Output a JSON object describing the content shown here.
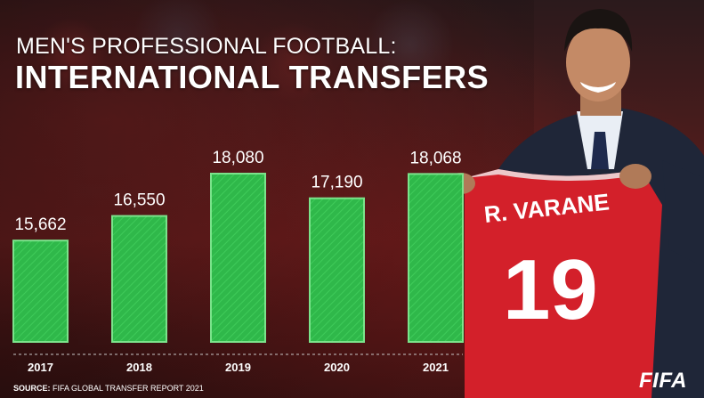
{
  "header": {
    "subtitle": "MEN'S PROFESSIONAL FOOTBALL:",
    "title": "INTERNATIONAL TRANSFERS"
  },
  "chart_data": {
    "type": "bar",
    "categories": [
      "2017",
      "2018",
      "2019",
      "2020",
      "2021"
    ],
    "values": [
      15662,
      16550,
      18080,
      17190,
      18068
    ],
    "value_labels": [
      "15,662",
      "16,550",
      "18,080",
      "17,190",
      "18,068"
    ],
    "title": "INTERNATIONAL TRANSFERS",
    "subtitle": "MEN'S PROFESSIONAL FOOTBALL:",
    "xlabel": "",
    "ylabel": "",
    "grid": false,
    "bar_color": "#2fb84a"
  },
  "footer": {
    "source_label": "SOURCE:",
    "source_text": "FIFA GLOBAL TRANSFER REPORT 2021",
    "brand": "FIFA"
  },
  "jersey": {
    "name": "R. VARANE",
    "number": "19"
  },
  "colors": {
    "bar": "#2fb84a",
    "bar_stroke": "#7be38b",
    "jersey_red": "#d3202a",
    "text": "#ffffff"
  }
}
